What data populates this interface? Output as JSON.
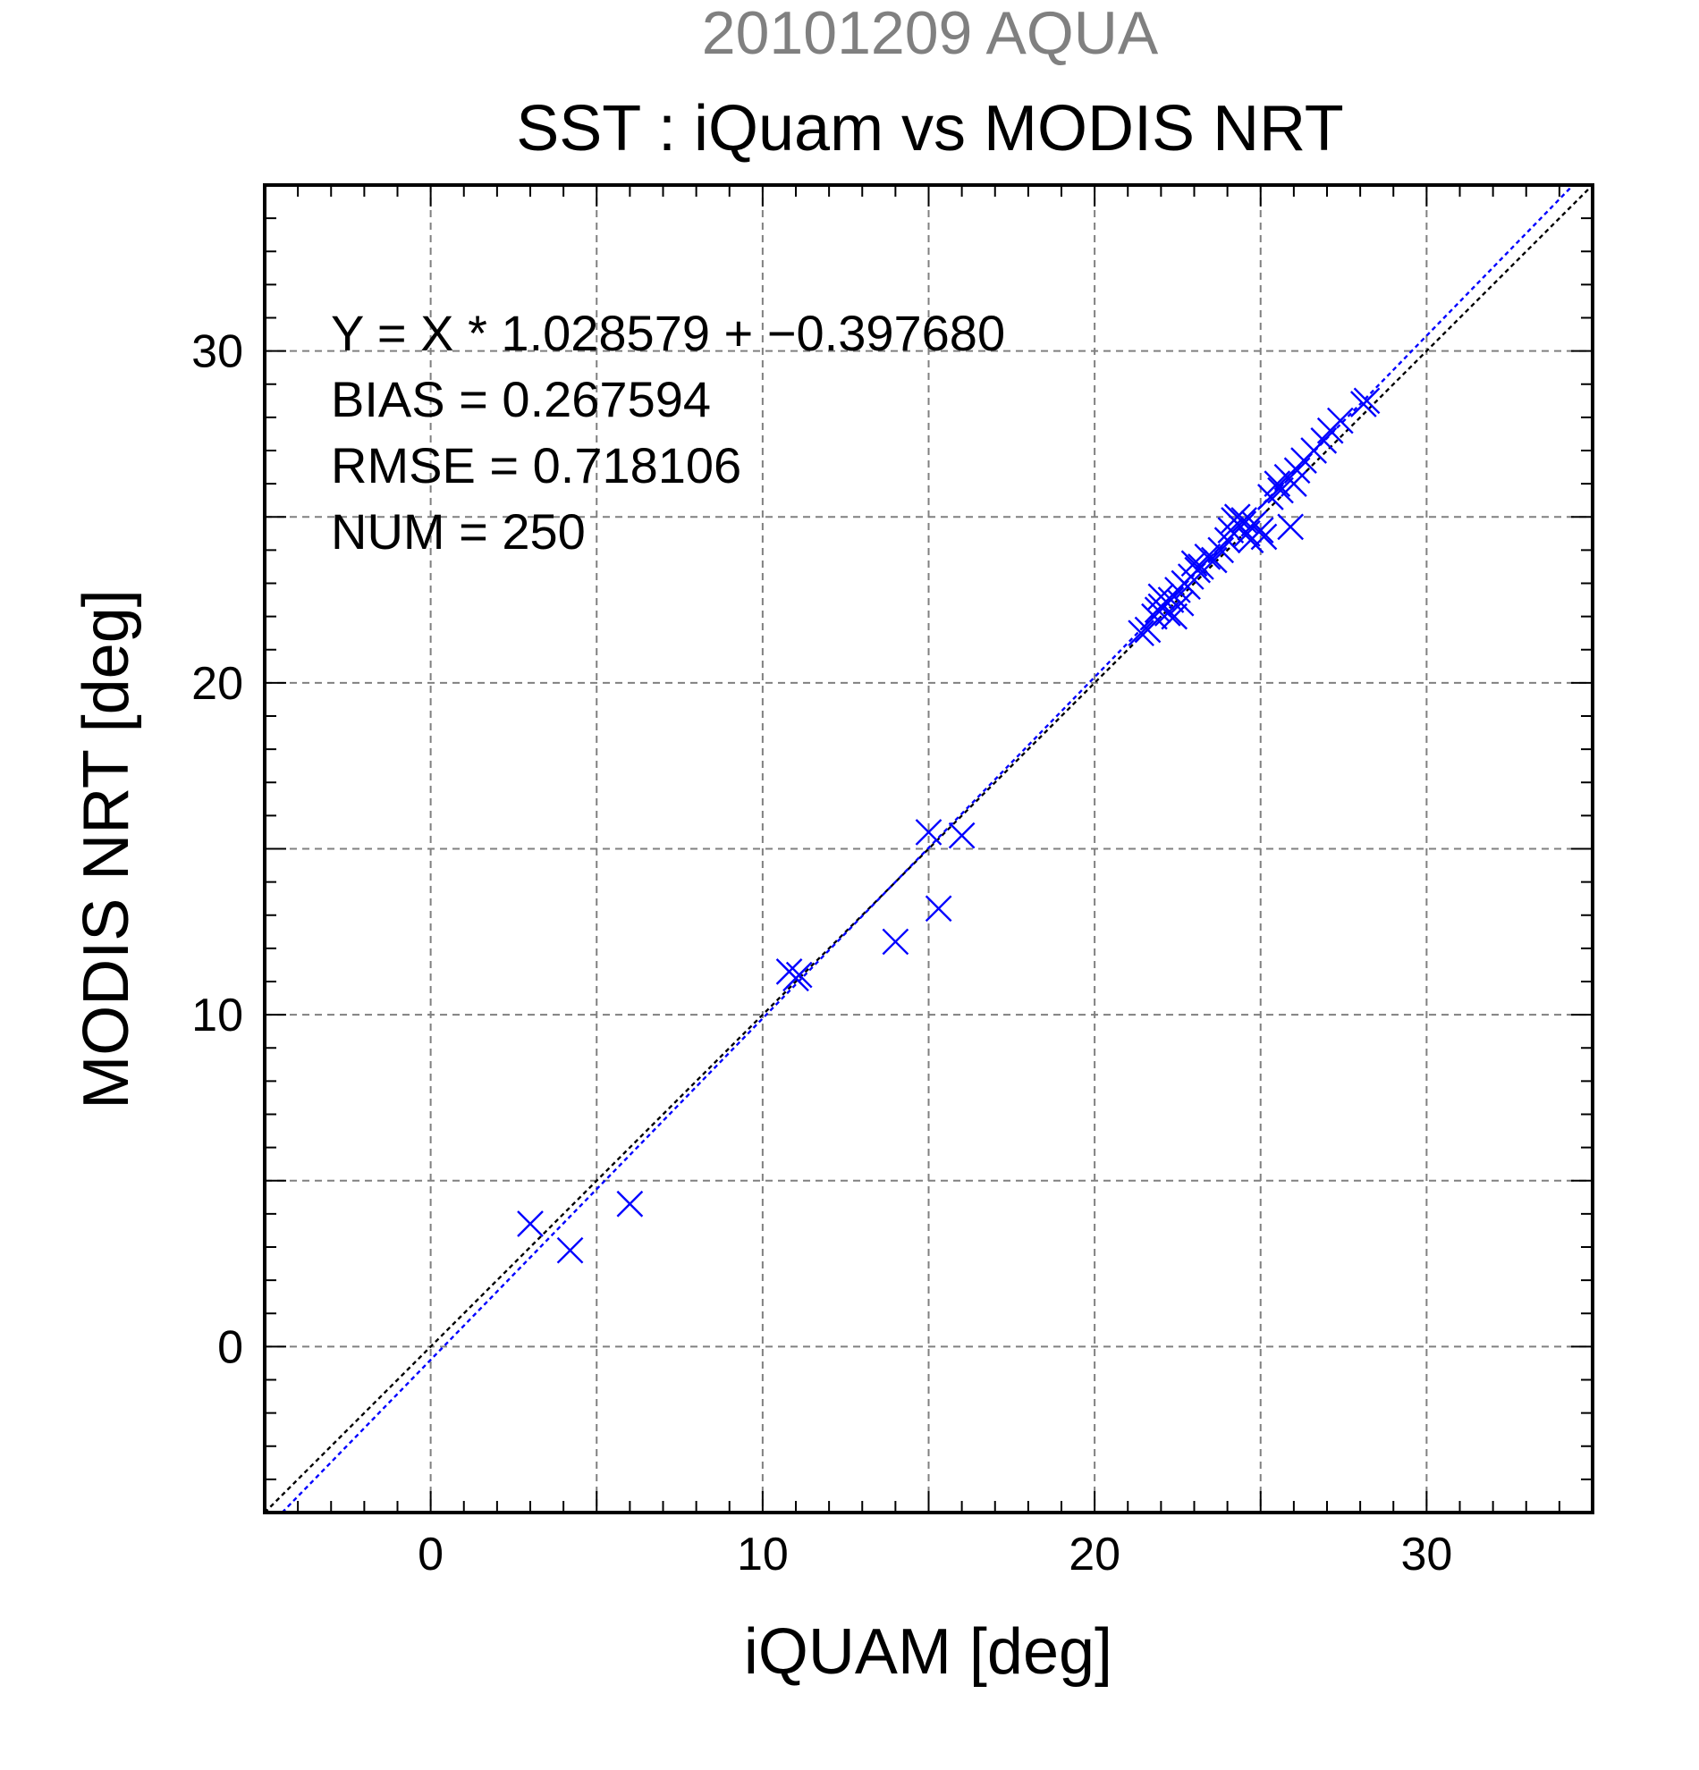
{
  "chart_data": {
    "type": "scatter",
    "supertitle": "20101209 AQUA",
    "title": "SST : iQuam vs MODIS NRT",
    "xlabel": "iQUAM [deg]",
    "ylabel": "MODIS NRT [deg]",
    "xlim": [
      -5,
      35
    ],
    "ylim": [
      -5,
      35
    ],
    "xticks": [
      0,
      10,
      20,
      30
    ],
    "yticks": [
      0,
      10,
      20,
      30
    ],
    "grid": true,
    "stats": [
      "Y = X * 1.028579 + −0.397680",
      "BIAS = 0.267594",
      "RMSE = 0.718106",
      "NUM = 250"
    ],
    "lines": [
      {
        "kind": "one-to-one",
        "slope": 1.0,
        "intercept": 0.0,
        "color": "#000000"
      },
      {
        "kind": "regression",
        "slope": 1.028579,
        "intercept": -0.39768,
        "color": "#0000ff"
      }
    ],
    "series": [
      {
        "color": "#0000ff",
        "marker": "x",
        "x": [
          3.0,
          4.2,
          6.0,
          10.8,
          11.0,
          11.1,
          14.0,
          15.0,
          15.3,
          16.0,
          21.4,
          21.6,
          21.8,
          22.0,
          22.0,
          22.2,
          22.3,
          22.5,
          22.6,
          22.7,
          22.8,
          22.9,
          23.0,
          23.1,
          23.2,
          23.4,
          23.6,
          23.8,
          24.0,
          24.1,
          24.2,
          24.3,
          24.4,
          24.5,
          24.6,
          24.8,
          25.0,
          25.1,
          25.3,
          25.5,
          25.6,
          25.8,
          26.0,
          26.1,
          26.3,
          26.6,
          26.9,
          27.1,
          27.4,
          28.1,
          28.2,
          21.9,
          22.4,
          24.7,
          25.9
        ],
        "y": [
          3.7,
          2.9,
          4.3,
          11.3,
          11.1,
          11.2,
          12.2,
          15.5,
          13.2,
          15.4,
          21.5,
          21.6,
          22.0,
          22.3,
          22.6,
          22.1,
          22.5,
          22.8,
          22.4,
          23.0,
          22.9,
          23.2,
          23.6,
          23.4,
          23.5,
          23.8,
          23.7,
          24.0,
          24.3,
          24.6,
          24.9,
          25.0,
          24.7,
          24.9,
          24.5,
          24.8,
          24.6,
          24.4,
          25.6,
          26.0,
          25.8,
          26.2,
          26.0,
          26.4,
          26.7,
          27.0,
          27.3,
          27.6,
          27.9,
          28.4,
          28.5,
          22.2,
          22.0,
          24.3,
          24.7
        ]
      }
    ]
  }
}
